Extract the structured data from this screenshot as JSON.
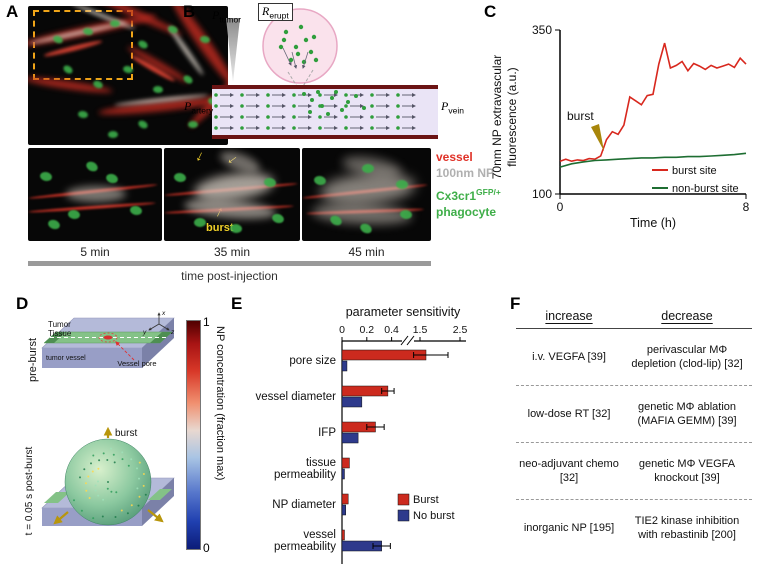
{
  "panels": {
    "a": {
      "label": "A",
      "timepoints": [
        "5 min",
        "35 min",
        "45 min"
      ],
      "timeline_label": "time post-injection",
      "burst_label": "burst",
      "legend": {
        "vessel": {
          "label": "vessel",
          "color": "#e03228"
        },
        "np": {
          "label": "100nm NP",
          "color": "#b0b0b0"
        },
        "phagocyte": {
          "base": "Cx3cr1",
          "sup": "GFP/+",
          "line2": "phagocyte",
          "color": "#3fae49"
        }
      }
    },
    "b": {
      "label": "B",
      "p_tumor": {
        "base": "P",
        "sub": "tumor"
      },
      "r_erupt": {
        "base": "R",
        "sub": "erupt"
      },
      "p_artery": {
        "base": "P",
        "sub": "artery"
      },
      "p_vein": {
        "base": "P",
        "sub": "vein"
      }
    },
    "c": {
      "label": "C",
      "ylabel_line1": "70nm NP extravascular",
      "ylabel_line2": "fluorescence (a.u.)"
    },
    "d": {
      "label": "D",
      "pre_burst_label": "pre-burst",
      "post_burst_label": "t = 0.05 s post-burst",
      "tumor_tissue_line1": "Tumor",
      "tumor_tissue_line2": "Tissue",
      "tumor_vessel": "tumor vessel",
      "vessel_pore": "Vessel pore",
      "burst_label": "burst",
      "axis_x": "x",
      "axis_y": "y",
      "axis_z": "z",
      "colorbar": {
        "max": "1",
        "min": "0",
        "label": "NP concentration (fraction max)"
      }
    },
    "e": {
      "label": "E"
    },
    "f": {
      "label": "F",
      "headers": [
        "increase",
        "decrease"
      ],
      "rows": [
        {
          "increase": "i.v. VEGFA [39]",
          "decrease": "perivascular MΦ depletion (clod-lip) [32]"
        },
        {
          "increase": "low-dose RT [32]",
          "decrease": "genetic MΦ ablation (MAFIA GEMM) [39]"
        },
        {
          "increase": "neo-adjuvant chemo [32]",
          "decrease": "genetic MΦ VEGFA knockout [39]"
        },
        {
          "increase": "inorganic NP [195]",
          "decrease": "TIE2 kinase inhibition with rebastinib [200]"
        }
      ]
    }
  },
  "chart_data": [
    {
      "id": "panel-c",
      "type": "line",
      "title": "",
      "ylabel": "70nm NP extravascular fluorescence (a.u.)",
      "xlabel": "Time (h)",
      "xlim": [
        0,
        8
      ],
      "ylim": [
        100,
        350
      ],
      "xticks": [
        0,
        8
      ],
      "yticks": [
        100,
        350
      ],
      "grid": false,
      "legend_position": "lower right",
      "annotations": [
        {
          "text": "burst",
          "color": "#a8860b",
          "x": 1.8,
          "y": 165
        }
      ],
      "series": [
        {
          "name": "burst site",
          "color": "#d8281e",
          "x": [
            0,
            0.25,
            0.5,
            0.75,
            1,
            1.25,
            1.5,
            1.75,
            2,
            2.25,
            2.5,
            2.75,
            3,
            3.25,
            3.5,
            3.75,
            4,
            4.25,
            4.5,
            4.75,
            5,
            5.25,
            5.5,
            5.75,
            6,
            6.25,
            6.5,
            6.75,
            7,
            7.25,
            7.5,
            7.75,
            8
          ],
          "y": [
            150,
            153,
            150,
            152,
            151,
            154,
            153,
            158,
            183,
            195,
            191,
            205,
            248,
            242,
            236,
            250,
            252,
            298,
            330,
            292,
            296,
            302,
            288,
            299,
            295,
            290,
            296,
            292,
            295,
            298,
            293,
            307,
            298
          ]
        },
        {
          "name": "non-burst site",
          "color": "#1e6e32",
          "x": [
            0,
            0.5,
            1,
            1.5,
            2,
            2.5,
            3,
            3.5,
            4,
            4.5,
            5,
            5.5,
            6,
            6.5,
            7,
            7.5,
            8
          ],
          "y": [
            141,
            146,
            149,
            151,
            152,
            153,
            154,
            155,
            155,
            156,
            156,
            157,
            157,
            158,
            159,
            160,
            162
          ]
        }
      ]
    },
    {
      "id": "panel-e",
      "type": "bar",
      "orientation": "horizontal",
      "title": "parameter sensitivity",
      "categories": [
        "pore size",
        "vessel diameter",
        "IFP",
        "tissue permeability",
        "NP diameter",
        "vessel permeability"
      ],
      "series": [
        {
          "name": "Burst",
          "color": "#cc2a1e",
          "values": [
            1.65,
            0.37,
            0.27,
            0.06,
            0.05,
            0.02
          ],
          "errors": [
            0.55,
            0.05,
            0.07,
            0,
            0,
            0
          ]
        },
        {
          "name": "No burst",
          "color": "#2e3a8c",
          "values": [
            0.04,
            0.16,
            0.13,
            0.02,
            0.03,
            0.32
          ],
          "errors": [
            0,
            0,
            0,
            0,
            0,
            0.07
          ]
        }
      ],
      "xticks": [
        0,
        0.2,
        0.4,
        1.5,
        2.5
      ],
      "axis_break": [
        0.5,
        1.5
      ],
      "xlim": [
        0,
        2.5
      ]
    }
  ]
}
